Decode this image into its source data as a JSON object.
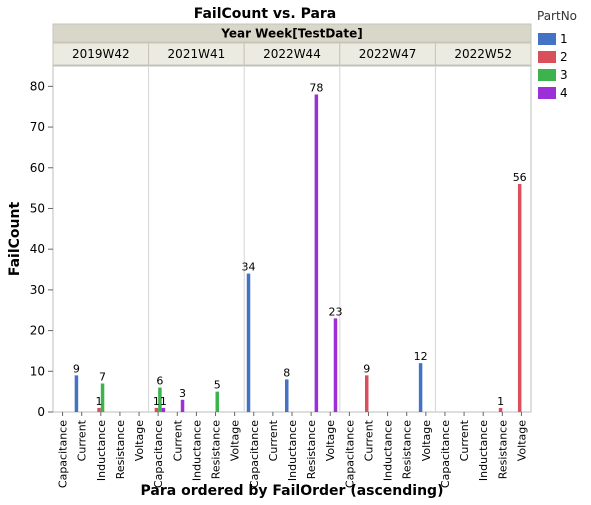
{
  "chart_data": {
    "type": "bar",
    "title": "FailCount vs. Para",
    "group_header": "Year Week[TestDate]",
    "groups": [
      "2019W42",
      "2021W41",
      "2022W44",
      "2022W47",
      "2022W52"
    ],
    "categories": [
      "Capacitance",
      "Current",
      "Inductance",
      "Resistance",
      "Voltage"
    ],
    "xlabel": "Para ordered by FailOrder (ascending)",
    "ylabel": "FailCount",
    "ylim": [
      0,
      85
    ],
    "yticks": [
      0,
      10,
      20,
      30,
      40,
      50,
      60,
      70,
      80
    ],
    "legend_title": "PartNo",
    "legend_position": "right",
    "series": [
      {
        "name": "1",
        "color": "#4472c4"
      },
      {
        "name": "2",
        "color": "#d94f5c"
      },
      {
        "name": "3",
        "color": "#3cb44b"
      },
      {
        "name": "4",
        "color": "#9b30d9"
      }
    ],
    "bars": [
      {
        "group": "2019W42",
        "category": "Current",
        "series": "1",
        "value": 9,
        "label": "9"
      },
      {
        "group": "2019W42",
        "category": "Inductance",
        "series": "2",
        "value": 1,
        "label": "1"
      },
      {
        "group": "2019W42",
        "category": "Inductance",
        "series": "3",
        "value": 7,
        "label": "7"
      },
      {
        "group": "2021W41",
        "category": "Capacitance",
        "series": "2",
        "value": 1,
        "label": "1"
      },
      {
        "group": "2021W41",
        "category": "Capacitance",
        "series": "3",
        "value": 6,
        "label": "6"
      },
      {
        "group": "2021W41",
        "category": "Capacitance",
        "series": "4",
        "value": 1,
        "label": "1"
      },
      {
        "group": "2021W41",
        "category": "Current",
        "series": "4",
        "value": 3,
        "label": "3"
      },
      {
        "group": "2021W41",
        "category": "Resistance",
        "series": "3",
        "value": 5,
        "label": "5"
      },
      {
        "group": "2022W44",
        "category": "Capacitance",
        "series": "1",
        "value": 34,
        "label": "34"
      },
      {
        "group": "2022W44",
        "category": "Inductance",
        "series": "1",
        "value": 8,
        "label": "8"
      },
      {
        "group": "2022W44",
        "category": "Resistance",
        "series": "4",
        "value": 78,
        "label": "78"
      },
      {
        "group": "2022W44",
        "category": "Voltage",
        "series": "4",
        "value": 23,
        "label": "23"
      },
      {
        "group": "2022W47",
        "category": "Current",
        "series": "2",
        "value": 9,
        "label": "9"
      },
      {
        "group": "2022W47",
        "category": "Voltage",
        "series": "1",
        "value": 12,
        "label": "12"
      },
      {
        "group": "2022W52",
        "category": "Resistance",
        "series": "2",
        "value": 1,
        "label": "1"
      },
      {
        "group": "2022W52",
        "category": "Voltage",
        "series": "2",
        "value": 56,
        "label": "56"
      }
    ]
  }
}
